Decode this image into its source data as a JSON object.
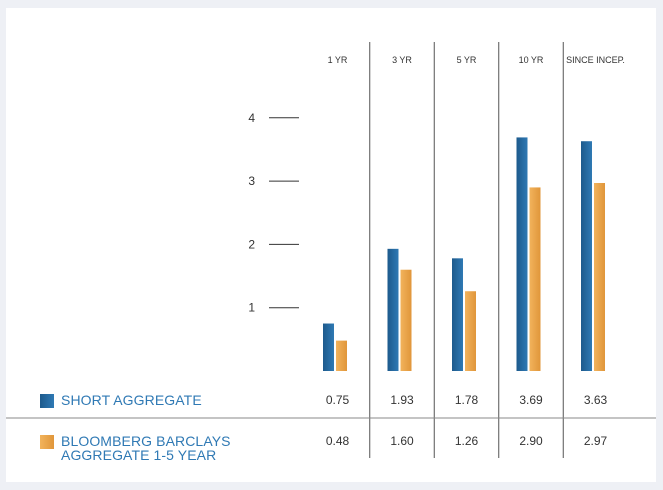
{
  "colors": {
    "series_1": "#2f79b4",
    "series_1_dark": "#1d5a8c",
    "series_2": "#f2b35c",
    "series_2_dark": "#e0963a",
    "divider": "#555555",
    "tick_label": "#333333"
  },
  "chart_data": {
    "type": "bar",
    "categories": [
      "1 YR",
      "3 YR",
      "5 YR",
      "10 YR",
      "SINCE INCEP."
    ],
    "series": [
      {
        "name": "SHORT AGGREGATE",
        "values": [
          0.75,
          1.93,
          1.78,
          3.69,
          3.63
        ],
        "value_labels": [
          "0.75",
          "1.93",
          "1.78",
          "3.69",
          "3.63"
        ]
      },
      {
        "name": "BLOOMBERG BARCLAYS AGGREGATE 1-5 YEAR",
        "values": [
          0.48,
          1.6,
          1.26,
          2.9,
          2.97
        ],
        "value_labels": [
          "0.48",
          "1.60",
          "1.26",
          "2.90",
          "2.97"
        ]
      }
    ],
    "y_ticks": [
      1,
      2,
      3,
      4
    ],
    "ylim": [
      0,
      4.6
    ],
    "grid": false,
    "title": "",
    "xlabel": "",
    "ylabel": "",
    "legend_position": "bottom-left, as table rows"
  },
  "legend": {
    "series_1_label": "SHORT AGGREGATE",
    "series_2_label": "BLOOMBERG BARCLAYS\nAGGREGATE 1-5 YEAR"
  }
}
